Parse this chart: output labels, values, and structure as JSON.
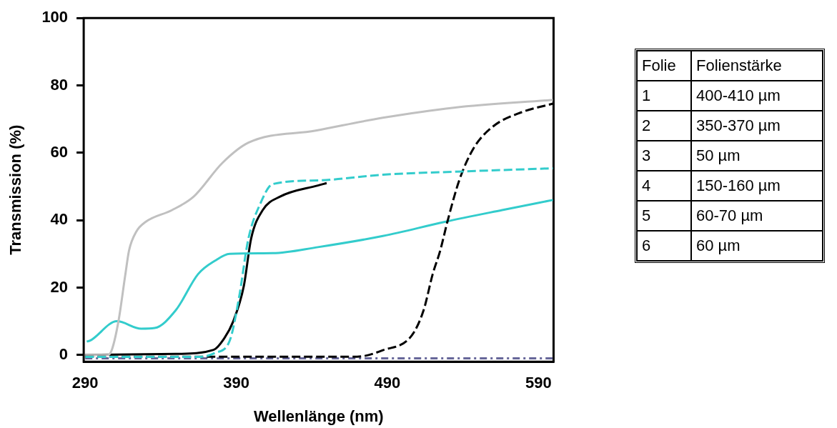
{
  "chart_data": {
    "type": "line",
    "xlabel": "Wellenlänge (nm)",
    "ylabel": "Transmission (%)",
    "xlim": [
      289,
      600
    ],
    "xticks": [
      290,
      390,
      490,
      590
    ],
    "ylim": [
      -2,
      100
    ],
    "yticks": [
      0,
      20,
      40,
      60,
      80,
      100
    ],
    "grid": false,
    "legend": false,
    "marker": "none",
    "series": [
      {
        "color": "#c0c0c0",
        "line_style": "solid",
        "x": [
          290,
          300,
          305,
          307.6,
          312,
          316.6,
          319,
          323.8,
          330,
          347.5,
          361.8,
          380.8,
          398,
          442.6,
          487,
          534,
          599.6
        ],
        "values": [
          0,
          0,
          0,
          1.5,
          10,
          24,
          31,
          36.6,
          39.5,
          43,
          47,
          57,
          63,
          66.6,
          70.4,
          73.4,
          75.7
        ]
      },
      {
        "color": "#33cccc",
        "line_style": "solid",
        "x": [
          291,
          293,
          311,
          327,
          336,
          350,
          364.7,
          376,
          385.6,
          414,
          444,
          487,
          528,
          566,
          599.6
        ],
        "values": [
          4,
          4.2,
          10,
          7.8,
          8,
          13.3,
          24,
          28,
          30,
          30.2,
          32,
          35.3,
          39.5,
          43,
          46
        ]
      },
      {
        "color": "#000000",
        "line_style": "solid",
        "x": [
          290,
          350,
          375,
          382,
          388,
          395,
          399.8,
          407.5,
          419,
          444,
          449.8
        ],
        "values": [
          0,
          0.3,
          1.5,
          4.9,
          10,
          20.5,
          34.5,
          43,
          47,
          50.3,
          51
        ]
      },
      {
        "color": "#33cccc",
        "line_style": "dashed",
        "x": [
          290,
          365,
          376,
          385.6,
          391.8,
          398,
          406,
          414,
          444,
          487,
          542.5,
          599.6
        ],
        "values": [
          -0.6,
          -0.6,
          0.6,
          4.2,
          17,
          34.5,
          45,
          50.7,
          51.8,
          53.5,
          54.5,
          55.4
        ]
      },
      {
        "color": "#000000",
        "line_style": "dashed",
        "x": [
          290,
          470,
          487,
          506,
          514,
          520,
          525,
          529.7,
          537.7,
          547,
          559.6,
          578.6,
          599.6
        ],
        "values": [
          -0.5,
          -0.5,
          1.4,
          5.7,
          13.3,
          24,
          31,
          39.5,
          52,
          61.3,
          67.7,
          72,
          74.6
        ]
      },
      {
        "color": "#666699",
        "line_style": "dotted",
        "x": [
          290,
          600
        ],
        "values": [
          -1,
          -1
        ]
      }
    ],
    "annotations": [
      "Folie",
      "Folienstärke",
      "1",
      "400-410 µm",
      "2",
      "350-370 µm",
      "3",
      "50 µm",
      "4",
      "150-160 µm",
      "5",
      "60-70 µm",
      "6",
      "60 µm"
    ]
  }
}
